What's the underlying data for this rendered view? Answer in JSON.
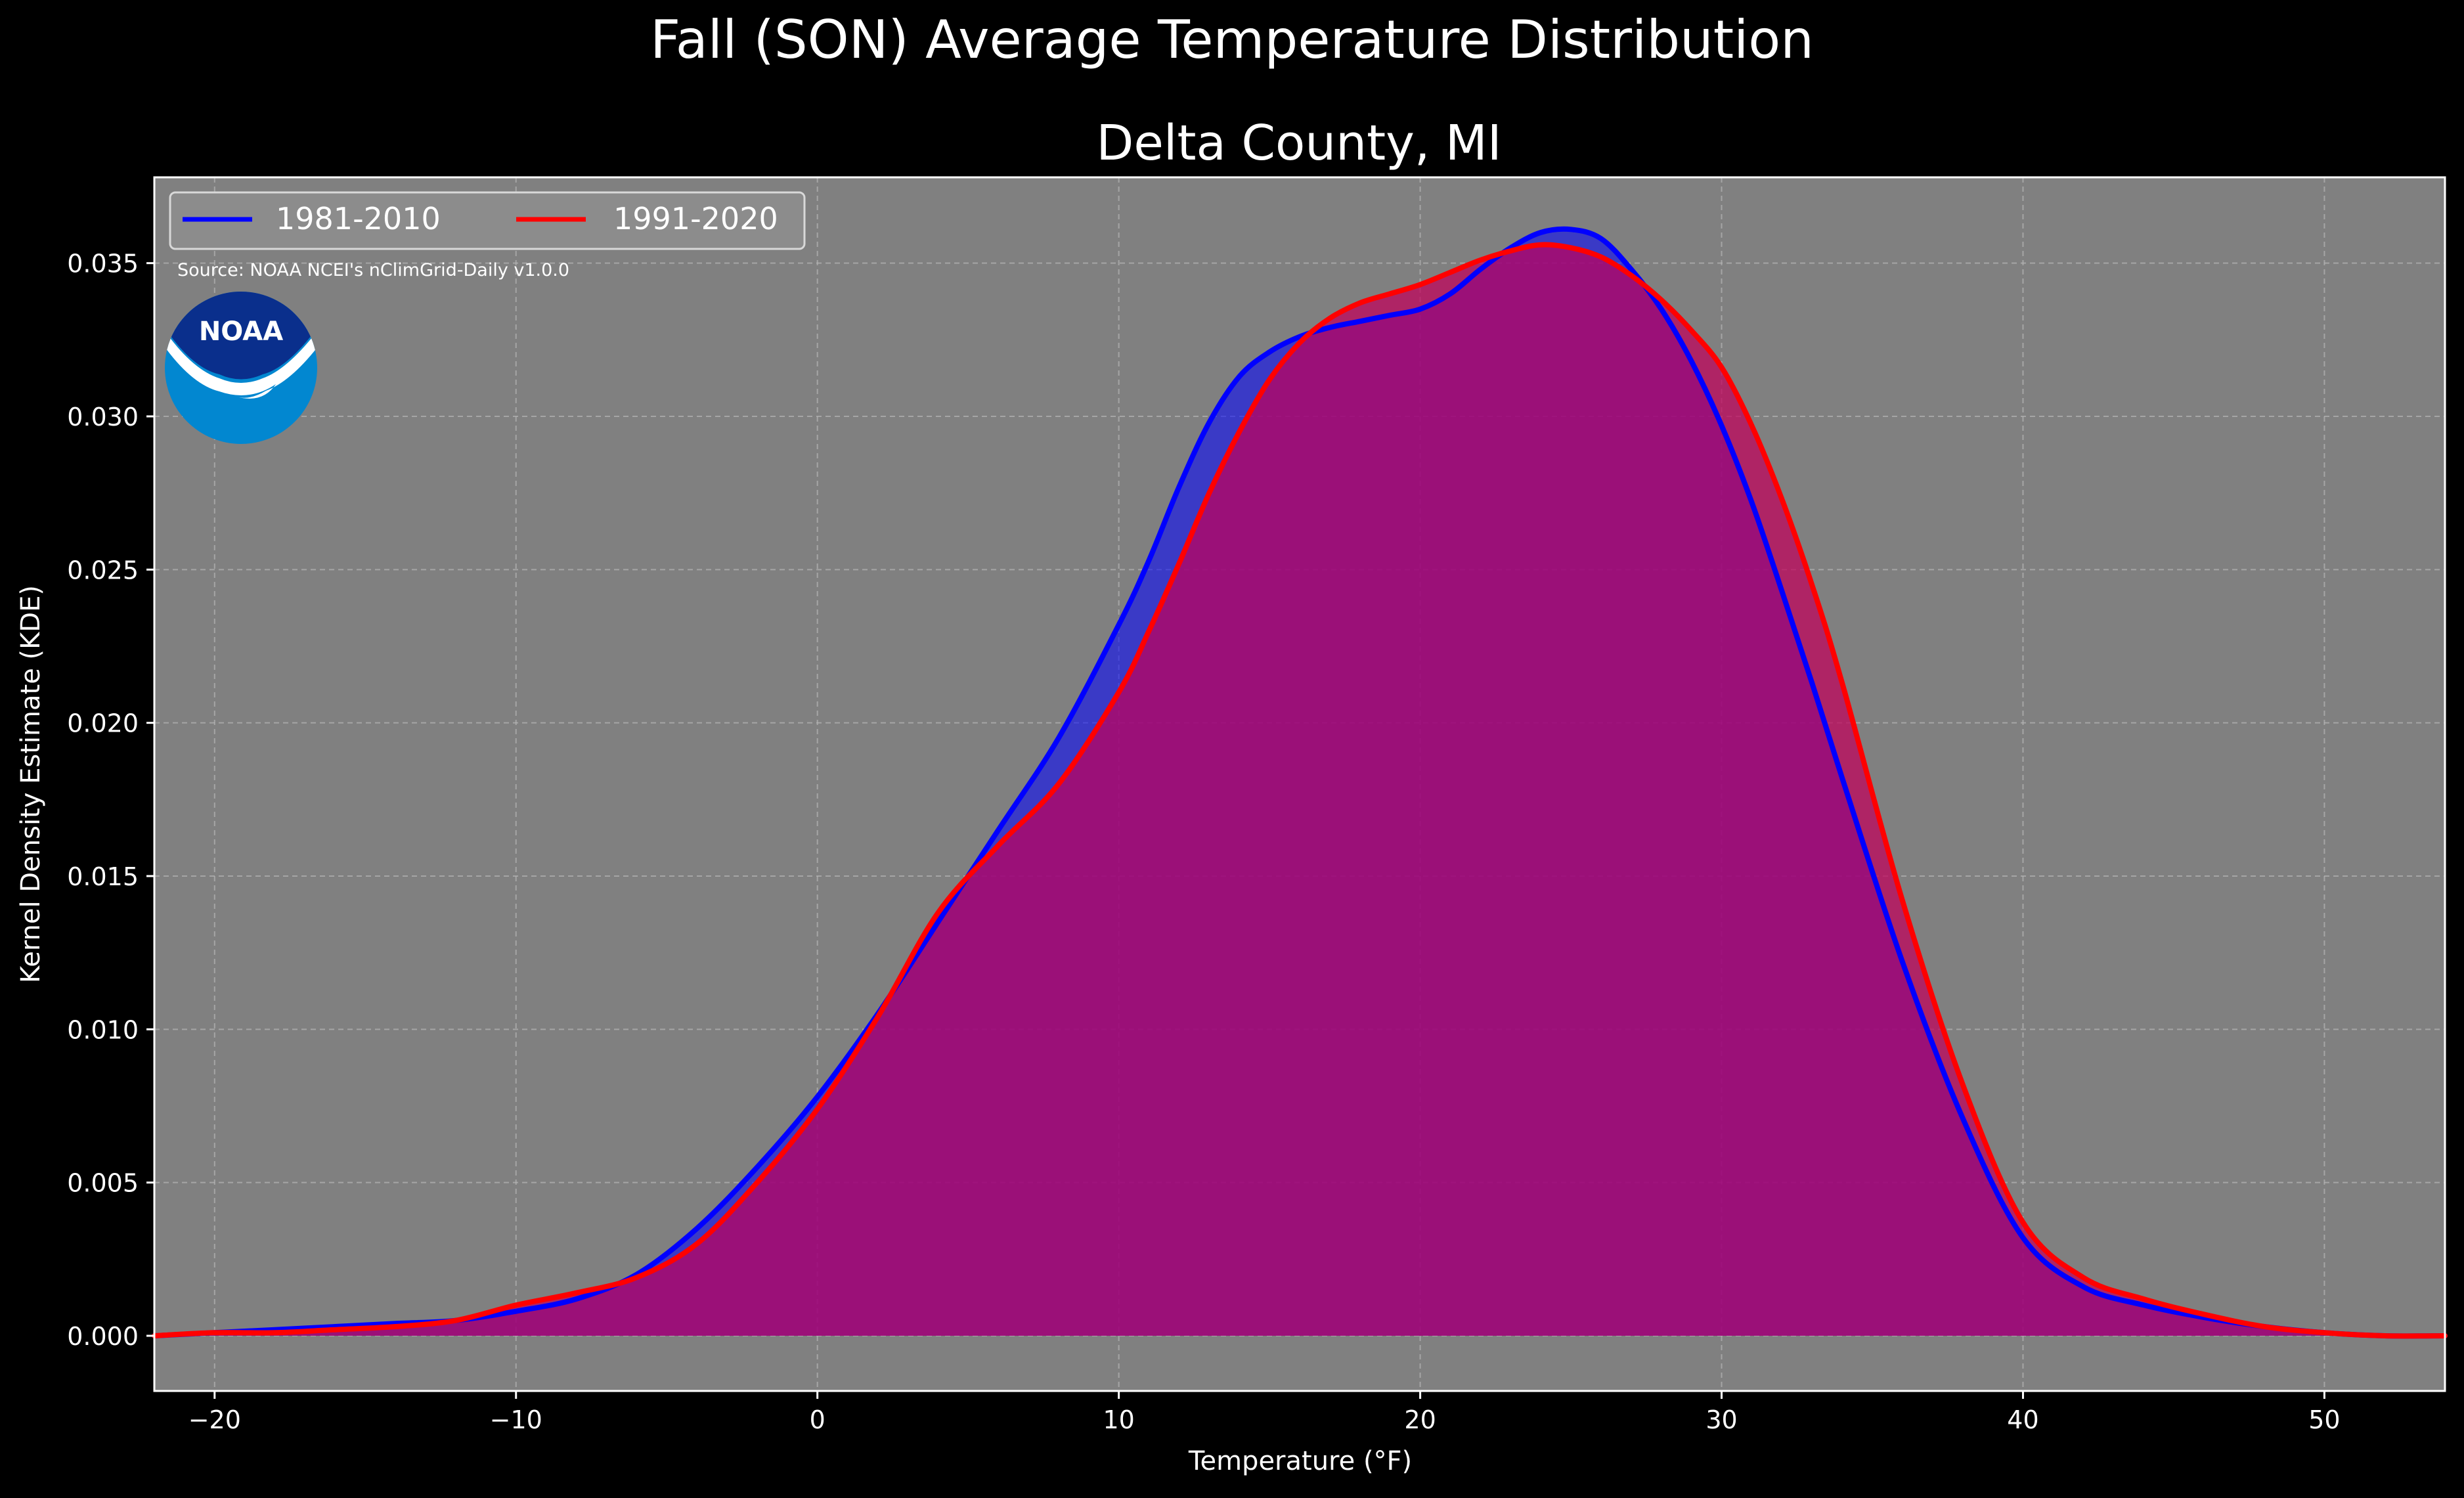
{
  "colors": {
    "background": "#000000",
    "plot_background": "#808080",
    "text": "#ffffff",
    "grid": "#b5b5b5",
    "series_1981": "#0000ff",
    "series_1991": "#ff0000",
    "fill_1981": "#0000ff",
    "fill_1991": "#c0005a",
    "noaa_dark": "#0a2f8c",
    "noaa_light": "#0287d0"
  },
  "chart_data": {
    "type": "area",
    "title": "Fall (SON) Average Temperature Distribution",
    "subtitle": "Delta County, MI",
    "xlabel": "Temperature ($^\\circ$F)",
    "xlabel_display": "Temperature (°F)",
    "ylabel": "Kernel Density Estimate (KDE)",
    "xlim": [
      -22,
      54
    ],
    "ylim": [
      -0.0018,
      0.0378
    ],
    "x_ticks": [
      -20,
      -10,
      0,
      10,
      20,
      30,
      40,
      50
    ],
    "x_tick_labels": [
      "−20",
      "−10",
      "0",
      "10",
      "20",
      "30",
      "40",
      "50"
    ],
    "y_ticks": [
      0.0,
      0.005,
      0.01,
      0.015,
      0.02,
      0.025,
      0.03,
      0.035
    ],
    "y_tick_labels": [
      "0.000",
      "0.005",
      "0.010",
      "0.015",
      "0.020",
      "0.025",
      "0.030",
      "0.035"
    ],
    "grid": true,
    "legend_position": "top-left",
    "annotation": "Source: NOAA NCEI's nClimGrid-Daily v1.0.0",
    "logo_text": "NOAA",
    "series": [
      {
        "name": "1981-2010",
        "color": "#0000ff",
        "fill": "#0000ff",
        "x": [
          -22,
          -20,
          -18,
          -16,
          -14,
          -12,
          -10,
          -8,
          -6,
          -4,
          -2,
          0,
          2,
          4,
          6,
          8,
          10,
          11,
          12,
          13,
          14,
          15,
          16,
          17,
          18,
          19,
          20,
          21,
          22,
          23,
          24,
          25,
          26,
          27,
          28,
          29,
          30,
          31,
          32,
          33,
          34,
          36,
          38,
          40,
          42,
          44,
          46,
          48,
          50,
          52,
          54
        ],
        "y": [
          0.0,
          0.0001,
          0.0002,
          0.0003,
          0.0004,
          0.0005,
          0.0008,
          0.0012,
          0.002,
          0.0035,
          0.0055,
          0.0078,
          0.0105,
          0.0135,
          0.0165,
          0.0195,
          0.0232,
          0.0253,
          0.0277,
          0.0298,
          0.0313,
          0.0321,
          0.0326,
          0.0329,
          0.0331,
          0.0333,
          0.0335,
          0.034,
          0.0348,
          0.0355,
          0.036,
          0.0361,
          0.0358,
          0.0348,
          0.0335,
          0.0318,
          0.0297,
          0.0272,
          0.0243,
          0.0213,
          0.0182,
          0.0122,
          0.0071,
          0.0032,
          0.0016,
          0.001,
          0.0006,
          0.0003,
          0.0001,
          0.0,
          0.0
        ]
      },
      {
        "name": "1991-2020",
        "color": "#ff0000",
        "fill": "#c0005a",
        "x": [
          -22,
          -20,
          -18,
          -16,
          -14,
          -12,
          -10,
          -8,
          -6,
          -4,
          -2,
          0,
          2,
          4,
          6,
          8,
          10,
          11,
          12,
          13,
          14,
          15,
          16,
          17,
          18,
          19,
          20,
          21,
          22,
          23,
          24,
          25,
          26,
          27,
          28,
          29,
          30,
          31,
          32,
          33,
          34,
          36,
          38,
          40,
          42,
          44,
          46,
          48,
          50,
          52,
          54
        ],
        "y": [
          0.0,
          0.0001,
          0.0001,
          0.0002,
          0.0003,
          0.0005,
          0.001,
          0.0014,
          0.0019,
          0.003,
          0.005,
          0.0074,
          0.0104,
          0.0138,
          0.016,
          0.018,
          0.021,
          0.023,
          0.0252,
          0.0275,
          0.0295,
          0.0312,
          0.0324,
          0.0332,
          0.0337,
          0.034,
          0.0343,
          0.0347,
          0.0351,
          0.0354,
          0.0356,
          0.0355,
          0.0352,
          0.0346,
          0.0338,
          0.0328,
          0.0316,
          0.0297,
          0.0273,
          0.0245,
          0.0213,
          0.0142,
          0.0082,
          0.0037,
          0.0019,
          0.0012,
          0.0007,
          0.0003,
          0.0001,
          0.0,
          0.0
        ]
      }
    ]
  }
}
